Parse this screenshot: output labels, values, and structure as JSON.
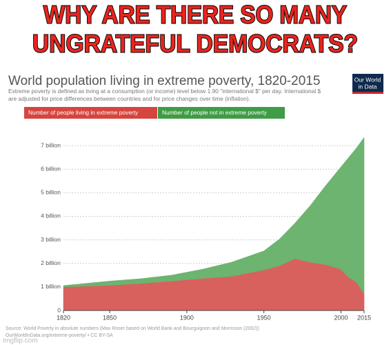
{
  "meme": {
    "caption": [
      "WHY ARE THERE SO MANY",
      "UNGRATEFUL DEMOCRATS?"
    ],
    "watermark": "imgflip.com"
  },
  "chart_data": {
    "type": "stacked-area",
    "title": "World population living in extreme poverty, 1820-2015",
    "subtitle": [
      "Extreme poverty is defined as living at a consumption (or income) level below 1.90 \"international $\" per day. International $",
      "are adjusted for price differences between countries and for price changes over time (inflation)."
    ],
    "logo": [
      "Our World",
      "in Data"
    ],
    "source": [
      "Source: World Poverty in absolute numbers (Max Roser based on World Bank and Bourguignon and Morrisson (2002))",
      "OurWorldInData.org/extreme-poverty/ • CC BY-SA"
    ],
    "x": [
      1820,
      1850,
      1870,
      1890,
      1910,
      1929,
      1950,
      1960,
      1970,
      1980,
      1990,
      2000,
      2005,
      2010,
      2015
    ],
    "series": [
      {
        "name": "Number of people living in extreme poverty",
        "color": "#d9615d",
        "legend_color": "#d6453f",
        "values": [
          1.0,
          1.07,
          1.15,
          1.25,
          1.36,
          1.45,
          1.72,
          1.9,
          2.2,
          2.05,
          1.95,
          1.75,
          1.4,
          1.2,
          0.7
        ]
      },
      {
        "name": "Number of people not in extreme poverty",
        "color": "#6cb46f",
        "legend_color": "#3f9c46",
        "values": [
          0.06,
          0.18,
          0.2,
          0.25,
          0.39,
          0.6,
          0.81,
          1.13,
          1.5,
          2.4,
          3.35,
          4.35,
          5.1,
          5.7,
          6.65
        ]
      }
    ],
    "xlim": [
      1820,
      2015
    ],
    "xticks": [
      1820,
      1850,
      1900,
      1950,
      2000,
      2015
    ],
    "ylim": [
      0,
      7.5
    ],
    "yticks": [
      0,
      {
        "value": 1,
        "label": "1 billion"
      },
      {
        "value": 2,
        "label": "2 billion"
      },
      {
        "value": 3,
        "label": "3 billion"
      },
      {
        "value": 4,
        "label": "4 billion"
      },
      {
        "value": 5,
        "label": "5 billion"
      },
      {
        "value": 6,
        "label": "6 billion"
      },
      {
        "value": 7,
        "label": "7 billion"
      }
    ],
    "grid": true
  }
}
